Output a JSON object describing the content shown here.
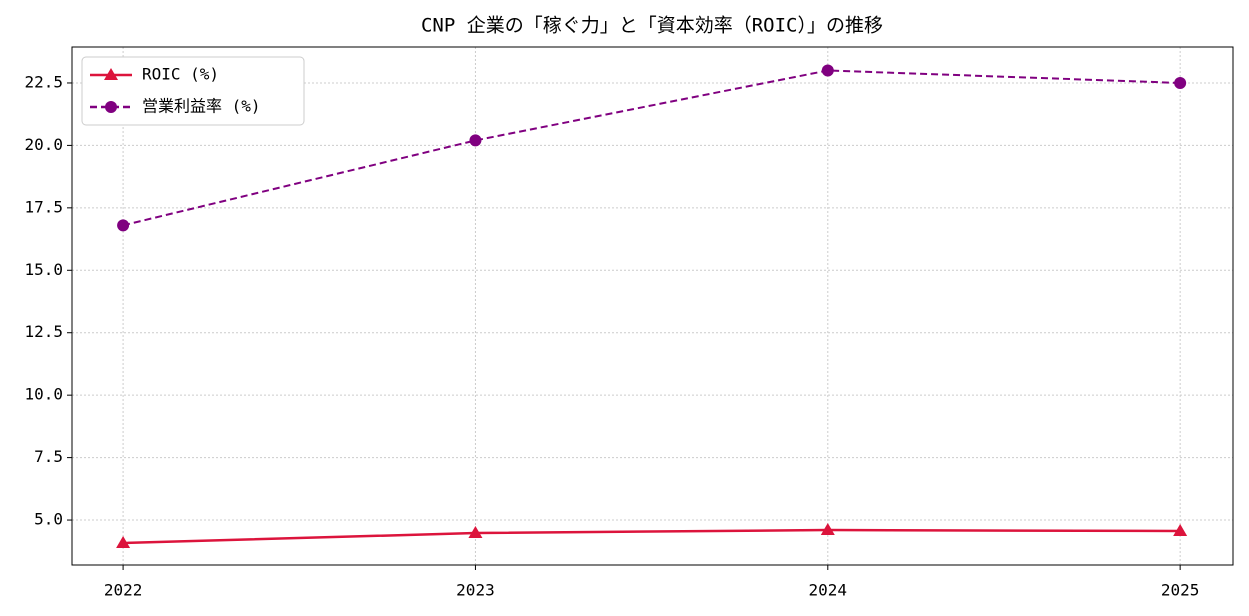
{
  "chart_data": {
    "type": "line",
    "title": "CNP 企業の「稼ぐ力」と「資本効率（ROIC）」の推移",
    "x": [
      2022,
      2023,
      2024,
      2025
    ],
    "series": [
      {
        "name": "ROIC (%)",
        "color": "#dc143c",
        "marker": "triangle",
        "linestyle": "solid",
        "values": [
          4.08,
          4.48,
          4.6,
          4.56
        ]
      },
      {
        "name": "営業利益率 (%)",
        "color": "#800080",
        "marker": "circle",
        "linestyle": "dashed",
        "values": [
          16.8,
          20.2,
          23.0,
          22.5
        ]
      }
    ],
    "xlim": [
      2021.855,
      2025.15
    ],
    "xticks": [
      2022,
      2023,
      2024,
      2025
    ],
    "ylim": [
      3.2,
      23.94
    ],
    "yticks": [
      {
        "value": 5,
        "label": "5.0"
      },
      7.5,
      {
        "value": 10,
        "label": "10.0"
      },
      12.5,
      {
        "value": 15,
        "label": "15.0"
      },
      17.5,
      {
        "value": 20,
        "label": "20.0"
      },
      22.5
    ],
    "grid": true,
    "legend": "upper-left"
  }
}
